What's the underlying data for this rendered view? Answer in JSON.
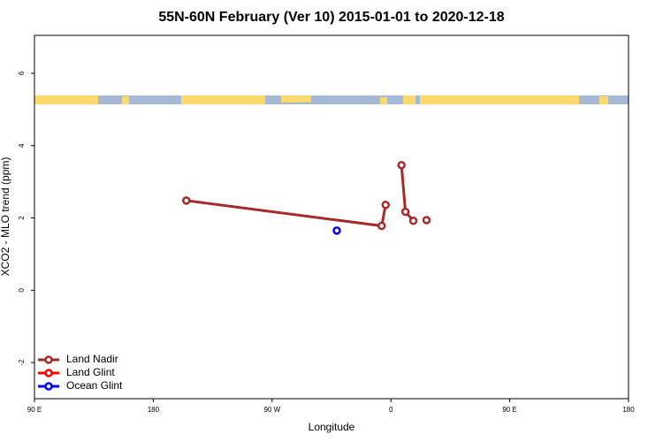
{
  "chart_data": {
    "type": "line",
    "title": "55N-60N February (Ver 10)   2015-01-01 to 2020-12-18",
    "x_label": "Longitude",
    "y_label": "XCO2 - MLO trend (ppm)",
    "xlim": [
      90,
      540
    ],
    "ylim": [
      -3,
      7.05
    ],
    "xticks": [
      {
        "value": 90,
        "label": "90 E"
      },
      180,
      {
        "value": 270,
        "label": "90 W"
      },
      {
        "value": 360,
        "label": "0"
      },
      {
        "value": 450,
        "label": "90 E"
      },
      {
        "value": 540,
        "label": "180"
      }
    ],
    "yticks": [
      -2,
      0,
      2,
      4,
      6
    ],
    "legend": "bottomleft",
    "series": [
      {
        "name": "Land Nadir",
        "color": "#a52a2a",
        "x": [
          205,
          353,
          356,
          null,
          368,
          371,
          377,
          null,
          387
        ],
        "values": [
          2.48,
          1.78,
          2.36,
          null,
          3.46,
          2.17,
          1.92,
          null,
          1.94
        ]
      },
      {
        "name": "Land Glint",
        "color": "#ff0000",
        "x": [],
        "values": []
      },
      {
        "name": "Ocean Glint",
        "color": "#0000ff",
        "x": [
          319
        ],
        "values": [
          1.65
        ]
      }
    ]
  }
}
